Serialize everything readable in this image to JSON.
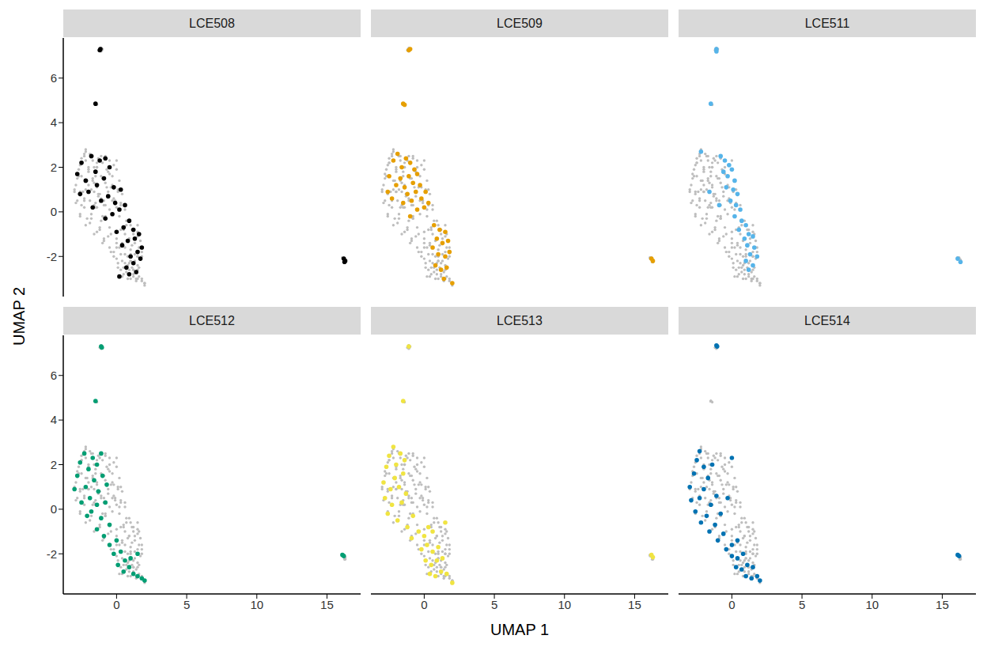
{
  "chart_data": {
    "type": "scatter",
    "x_label": "UMAP 1",
    "y_label": "UMAP 2",
    "xlim": [
      -3.8,
      17.4
    ],
    "ylim": [
      -3.8,
      7.8
    ],
    "xticks": [
      0,
      5,
      10,
      15
    ],
    "yticks": [
      -2,
      0,
      2,
      4,
      6
    ],
    "series": [
      {
        "name": "LCE508",
        "color": "#000000",
        "x": [
          -2.8,
          -2.5,
          -2.2,
          -1.8,
          -1.5,
          -1.2,
          -0.8,
          -2.6,
          -2.0,
          -1.4,
          -0.9,
          -0.5,
          -0.2,
          -1.7,
          -1.1,
          -0.6,
          -0.1,
          0.3,
          -0.8,
          -0.3,
          0.2,
          0.6,
          0.0,
          0.5,
          0.9,
          1.2,
          0.4,
          0.8,
          1.3,
          1.6,
          1.0,
          1.5,
          1.8,
          0.7,
          1.2,
          1.7,
          0.2,
          0.9,
          1.4,
          -1.2,
          -1.15,
          -1.5,
          16.2,
          16.3,
          16.25
        ],
        "values": [
          1.7,
          2.2,
          1.4,
          2.5,
          1.8,
          2.3,
          2.4,
          0.8,
          0.9,
          1.2,
          1.5,
          2.0,
          1.1,
          0.2,
          0.5,
          0.7,
          0.4,
          1.0,
          -0.3,
          -0.1,
          0.1,
          0.3,
          -0.9,
          -0.7,
          -0.4,
          -0.8,
          -1.5,
          -1.3,
          -1.2,
          -1.0,
          -2.0,
          -1.8,
          -1.6,
          -2.5,
          -2.3,
          -2.1,
          -2.9,
          -2.8,
          -2.7,
          7.25,
          7.3,
          4.85,
          -2.1,
          -2.2,
          -2.25
        ]
      },
      {
        "name": "LCE509",
        "color": "#E69F00",
        "x": [
          -2.5,
          -2.2,
          -1.9,
          -1.6,
          -1.3,
          -1.0,
          -0.7,
          -2.0,
          -1.7,
          -1.4,
          -1.1,
          -0.8,
          -0.5,
          -0.3,
          -2.6,
          -2.3,
          -1.5,
          -1.2,
          -0.9,
          -0.6,
          -0.2,
          0.1,
          -1.0,
          -0.5,
          0.0,
          0.3,
          0.7,
          1.1,
          1.5,
          0.9,
          1.3,
          1.7,
          0.6,
          1.0,
          1.5,
          1.8,
          0.8,
          1.2,
          1.6,
          1.4,
          2.0,
          -1.1,
          -1.0,
          -1.5,
          -1.4,
          16.2,
          16.3
        ],
        "values": [
          1.6,
          2.3,
          2.6,
          2.0,
          2.4,
          2.2,
          1.9,
          1.2,
          1.5,
          1.1,
          1.6,
          1.3,
          1.7,
          1.2,
          0.9,
          0.6,
          0.4,
          0.8,
          0.5,
          0.9,
          0.6,
          0.9,
          -0.2,
          0.1,
          0.2,
          0.4,
          -0.6,
          -0.8,
          -0.9,
          -1.2,
          -1.4,
          -1.3,
          -1.6,
          -1.9,
          -2.0,
          -1.8,
          -2.4,
          -2.6,
          -2.5,
          -3.0,
          -3.2,
          7.25,
          7.3,
          4.85,
          4.8,
          -2.1,
          -2.2
        ]
      },
      {
        "name": "LCE511",
        "color": "#56B4E9",
        "x": [
          -0.8,
          -0.5,
          -0.2,
          -0.6,
          -0.3,
          0.0,
          0.2,
          -0.4,
          0.1,
          0.4,
          -0.1,
          0.3,
          0.6,
          0.2,
          0.7,
          1.0,
          0.5,
          1.2,
          0.9,
          1.5,
          1.1,
          1.6,
          1.3,
          1.8,
          1.0,
          1.5,
          1.2,
          -1.6,
          -2.2,
          -0.9,
          -1.1,
          -1.1,
          -1.5,
          16.1,
          16.3
        ],
        "values": [
          2.5,
          2.3,
          2.1,
          1.8,
          1.6,
          1.9,
          1.4,
          1.1,
          1.0,
          0.8,
          0.5,
          0.3,
          0.1,
          -0.2,
          -0.4,
          -0.6,
          -0.8,
          -1.0,
          -1.2,
          -1.1,
          -1.5,
          -1.6,
          -1.9,
          -2.0,
          -2.2,
          -2.4,
          -2.6,
          0.9,
          2.7,
          0.3,
          7.3,
          7.2,
          4.85,
          -2.1,
          -2.25
        ]
      },
      {
        "name": "LCE512",
        "color": "#009E73",
        "x": [
          -3.0,
          -2.8,
          -2.6,
          -2.3,
          -2.0,
          -1.7,
          -1.4,
          -1.1,
          -2.5,
          -2.2,
          -1.9,
          -1.6,
          -1.3,
          -1.0,
          -0.7,
          -2.1,
          -1.8,
          -1.4,
          -1.1,
          -0.8,
          -1.4,
          -0.9,
          -0.5,
          -0.5,
          0.0,
          -0.2,
          0.3,
          0.6,
          0.1,
          0.9,
          0.5,
          1.2,
          1.5,
          1.8,
          1.0,
          1.5,
          2.0,
          -1.1,
          -1.05,
          -1.5,
          16.1,
          16.2
        ],
        "values": [
          0.9,
          1.5,
          2.1,
          2.5,
          1.8,
          2.3,
          2.0,
          2.5,
          0.3,
          1.0,
          0.5,
          1.3,
          0.8,
          1.5,
          1.1,
          -0.3,
          -0.1,
          0.2,
          -0.4,
          0.3,
          -0.9,
          -1.2,
          -0.7,
          -1.6,
          -1.4,
          -2.0,
          -1.9,
          -2.3,
          -2.5,
          -2.6,
          -2.8,
          -2.9,
          -3.0,
          -3.1,
          -2.2,
          -2.0,
          -3.2,
          7.3,
          7.25,
          4.85,
          -2.05,
          -2.1
        ]
      },
      {
        "name": "LCE513",
        "color": "#F0E442",
        "x": [
          -2.9,
          -2.7,
          -2.5,
          -2.2,
          -2.0,
          -1.7,
          -1.4,
          -2.8,
          -2.4,
          -2.1,
          -1.8,
          -1.5,
          -2.6,
          -2.3,
          -1.9,
          -1.6,
          -1.3,
          -1.2,
          -0.8,
          -0.9,
          -0.4,
          0.0,
          0.3,
          0.6,
          -0.2,
          0.2,
          0.6,
          1.0,
          0.1,
          0.5,
          0.9,
          1.3,
          0.4,
          0.8,
          1.2,
          1.6,
          2.0,
          1.5,
          -1.1,
          -1.5,
          16.2,
          16.3
        ],
        "values": [
          1.2,
          1.9,
          2.4,
          2.8,
          2.0,
          2.5,
          2.2,
          0.5,
          0.9,
          1.4,
          1.0,
          1.6,
          -0.2,
          0.2,
          -0.5,
          0.3,
          0.7,
          -0.8,
          -0.3,
          -1.3,
          -1.0,
          -1.2,
          -0.8,
          -1.0,
          -1.8,
          -1.6,
          -1.9,
          -1.7,
          -2.3,
          -2.5,
          -2.3,
          -2.2,
          -2.9,
          -3.0,
          -2.8,
          -2.9,
          -3.3,
          -0.6,
          7.3,
          4.85,
          -2.05,
          -2.15
        ]
      },
      {
        "name": "LCE514",
        "color": "#0072B2",
        "x": [
          -3.0,
          -2.9,
          -2.7,
          -2.5,
          -2.3,
          -2.0,
          -1.7,
          -1.4,
          -2.6,
          -2.3,
          -2.0,
          -2.2,
          -1.8,
          -1.5,
          -1.1,
          -1.6,
          -1.2,
          -0.8,
          -1.0,
          -0.6,
          -0.4,
          0.0,
          0.4,
          0.0,
          0.4,
          0.8,
          0.3,
          0.7,
          1.1,
          1.5,
          1.0,
          1.4,
          1.8,
          2.0,
          -0.3,
          0.0,
          -1.1,
          -1.05,
          16.1,
          16.2
        ],
        "values": [
          1.0,
          0.4,
          1.6,
          2.2,
          2.6,
          1.9,
          1.4,
          2.0,
          -0.1,
          0.5,
          0.9,
          -0.6,
          -0.3,
          0.2,
          0.6,
          -1.0,
          -0.7,
          -0.2,
          -1.4,
          -1.1,
          -1.8,
          -1.6,
          -1.4,
          -2.1,
          -2.2,
          -2.0,
          -2.6,
          -2.7,
          -2.5,
          -2.6,
          -3.0,
          -3.1,
          -3.0,
          -3.2,
          0.5,
          2.3,
          7.35,
          7.3,
          -2.05,
          -2.1
        ]
      }
    ]
  }
}
